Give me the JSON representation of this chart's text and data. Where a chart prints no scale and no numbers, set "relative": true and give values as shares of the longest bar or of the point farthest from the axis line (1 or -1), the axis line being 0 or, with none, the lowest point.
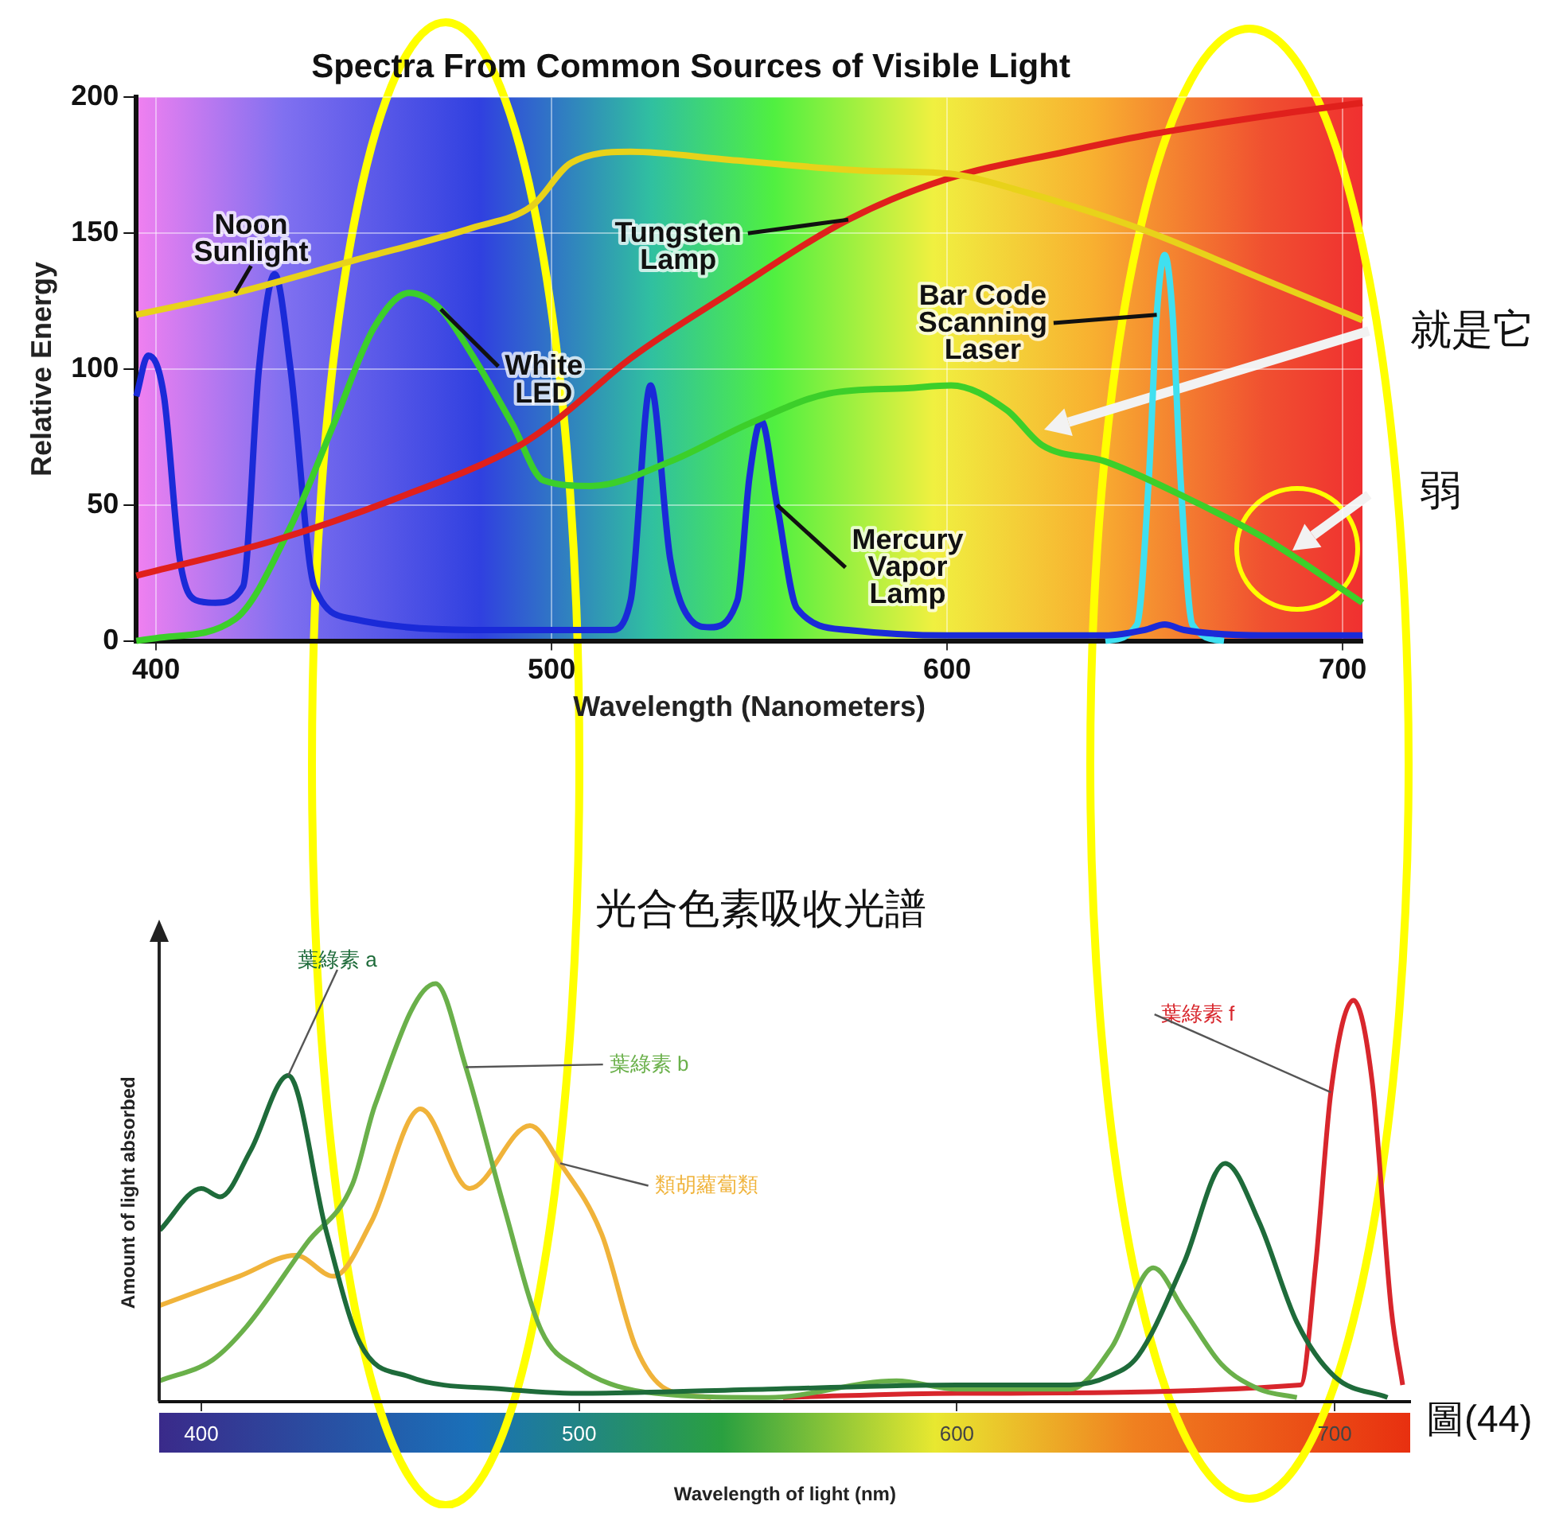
{
  "chart_data": [
    {
      "type": "line",
      "title": "Spectra From Common Sources of Visible Light",
      "xlabel": "Wavelength (Nanometers)",
      "ylabel": "Relative Energy",
      "xlim": [
        395,
        705
      ],
      "xticks": [
        400,
        500,
        600,
        700
      ],
      "ylim": [
        0,
        200
      ],
      "yticks": [
        0,
        50,
        100,
        150,
        200
      ],
      "grid": true,
      "legend": false,
      "marker": "none",
      "line_style": "solid",
      "annotations": [
        "就是它",
        "弱"
      ],
      "series": [
        {
          "name": "Noon Sunlight",
          "color": "#e8d21a",
          "x": [
            395,
            420,
            450,
            480,
            495,
            505,
            520,
            545,
            580,
            600,
            620,
            650,
            680,
            705
          ],
          "values": [
            120,
            128,
            140,
            152,
            160,
            176,
            180,
            177,
            173,
            172,
            165,
            151,
            133,
            118
          ]
        },
        {
          "name": "Tungsten Lamp",
          "color": "#e0201c",
          "x": [
            395,
            430,
            460,
            492,
            501,
            520,
            545,
            575,
            600,
            630,
            650,
            680,
            705
          ],
          "values": [
            24,
            37,
            52,
            72,
            81,
            104,
            128,
            155,
            170,
            180,
            186,
            193,
            198
          ]
        },
        {
          "name": "White LED",
          "color": "#3ccf2a",
          "x": [
            395,
            400,
            420,
            434,
            445,
            455,
            464,
            472,
            480,
            490,
            498,
            510,
            530,
            550,
            570,
            590,
            601,
            615,
            624,
            640,
            660,
            680,
            705
          ],
          "values": [
            0,
            1,
            8,
            42,
            80,
            115,
            128,
            122,
            105,
            80,
            59,
            57,
            66,
            80,
            91,
            93,
            94,
            85,
            72,
            66,
            53,
            38,
            14
          ]
        },
        {
          "name": "Mercury Vapor Lamp",
          "color": "#1a2ad8",
          "x": [
            395,
            398,
            402,
            406,
            410,
            415,
            422,
            426,
            430,
            434,
            440,
            450,
            480,
            515,
            520,
            525,
            530,
            535,
            540,
            547,
            550,
            553,
            557,
            562,
            575,
            600,
            640,
            650,
            655,
            660,
            680,
            705
          ],
          "values": [
            90,
            105,
            90,
            30,
            15,
            14,
            20,
            100,
            135,
            100,
            20,
            8,
            4,
            4,
            15,
            94,
            30,
            8,
            5,
            15,
            60,
            81,
            50,
            12,
            4,
            2,
            2,
            4,
            6,
            4,
            2,
            2
          ]
        },
        {
          "name": "Bar Code Scanning Laser",
          "color": "#3fe0f0",
          "x": [
            640,
            648,
            651,
            653,
            655,
            657,
            659,
            662,
            670
          ],
          "values": [
            0,
            6,
            60,
            120,
            142,
            120,
            60,
            6,
            0
          ]
        }
      ]
    },
    {
      "type": "line",
      "title": "光合色素吸收光譜",
      "xlabel": "Wavelength of light (nm)",
      "ylabel": "Amount of light absorbed",
      "relative": true,
      "xlim": [
        389,
        720
      ],
      "xticks": [
        400,
        500,
        600,
        700
      ],
      "legend": false,
      "marker": "none",
      "line_style": "solid",
      "annotations": [
        "圖(44)"
      ],
      "series": [
        {
          "name": "葉綠素 a",
          "color": "#1e6b3a",
          "x": [
            389,
            400,
            405,
            413,
            423,
            433,
            442,
            455,
            480,
            500,
            550,
            600,
            630,
            640,
            648,
            660,
            671,
            680,
            690,
            700,
            714
          ],
          "values": [
            0.41,
            0.51,
            0.49,
            0.6,
            0.78,
            0.41,
            0.14,
            0.06,
            0.03,
            0.02,
            0.03,
            0.04,
            0.04,
            0.06,
            0.11,
            0.33,
            0.57,
            0.43,
            0.19,
            0.06,
            0.01
          ]
        },
        {
          "name": "葉綠素 b",
          "color": "#6ab04a",
          "x": [
            389,
            403,
            412,
            428,
            440,
            446,
            462,
            470,
            480,
            490,
            500,
            520,
            550,
            584,
            600,
            630,
            641,
            652,
            660,
            670,
            680,
            690
          ],
          "values": [
            0.05,
            0.1,
            0.18,
            0.38,
            0.52,
            0.71,
            1,
            0.8,
            0.47,
            0.17,
            0.08,
            0.02,
            0.01,
            0.05,
            0.03,
            0.03,
            0.13,
            0.32,
            0.22,
            0.09,
            0.03,
            0.01
          ]
        },
        {
          "name": "類胡蘿蔔類",
          "color": "#f0b33a",
          "x": [
            389,
            410,
            425,
            435,
            445,
            458,
            471,
            487,
            495,
            506,
            515,
            523,
            535
          ],
          "values": [
            0.23,
            0.3,
            0.35,
            0.3,
            0.43,
            0.7,
            0.51,
            0.66,
            0.57,
            0.4,
            0.13,
            0.03,
            0.01
          ]
        },
        {
          "name": "葉綠素 f",
          "color": "#d8262c",
          "x": [
            554,
            600,
            691,
            695,
            699,
            705,
            710,
            715,
            718
          ],
          "values": [
            0.01,
            0.02,
            0.04,
            0.33,
            0.74,
            0.96,
            0.76,
            0.22,
            0.04
          ]
        }
      ]
    }
  ]
}
